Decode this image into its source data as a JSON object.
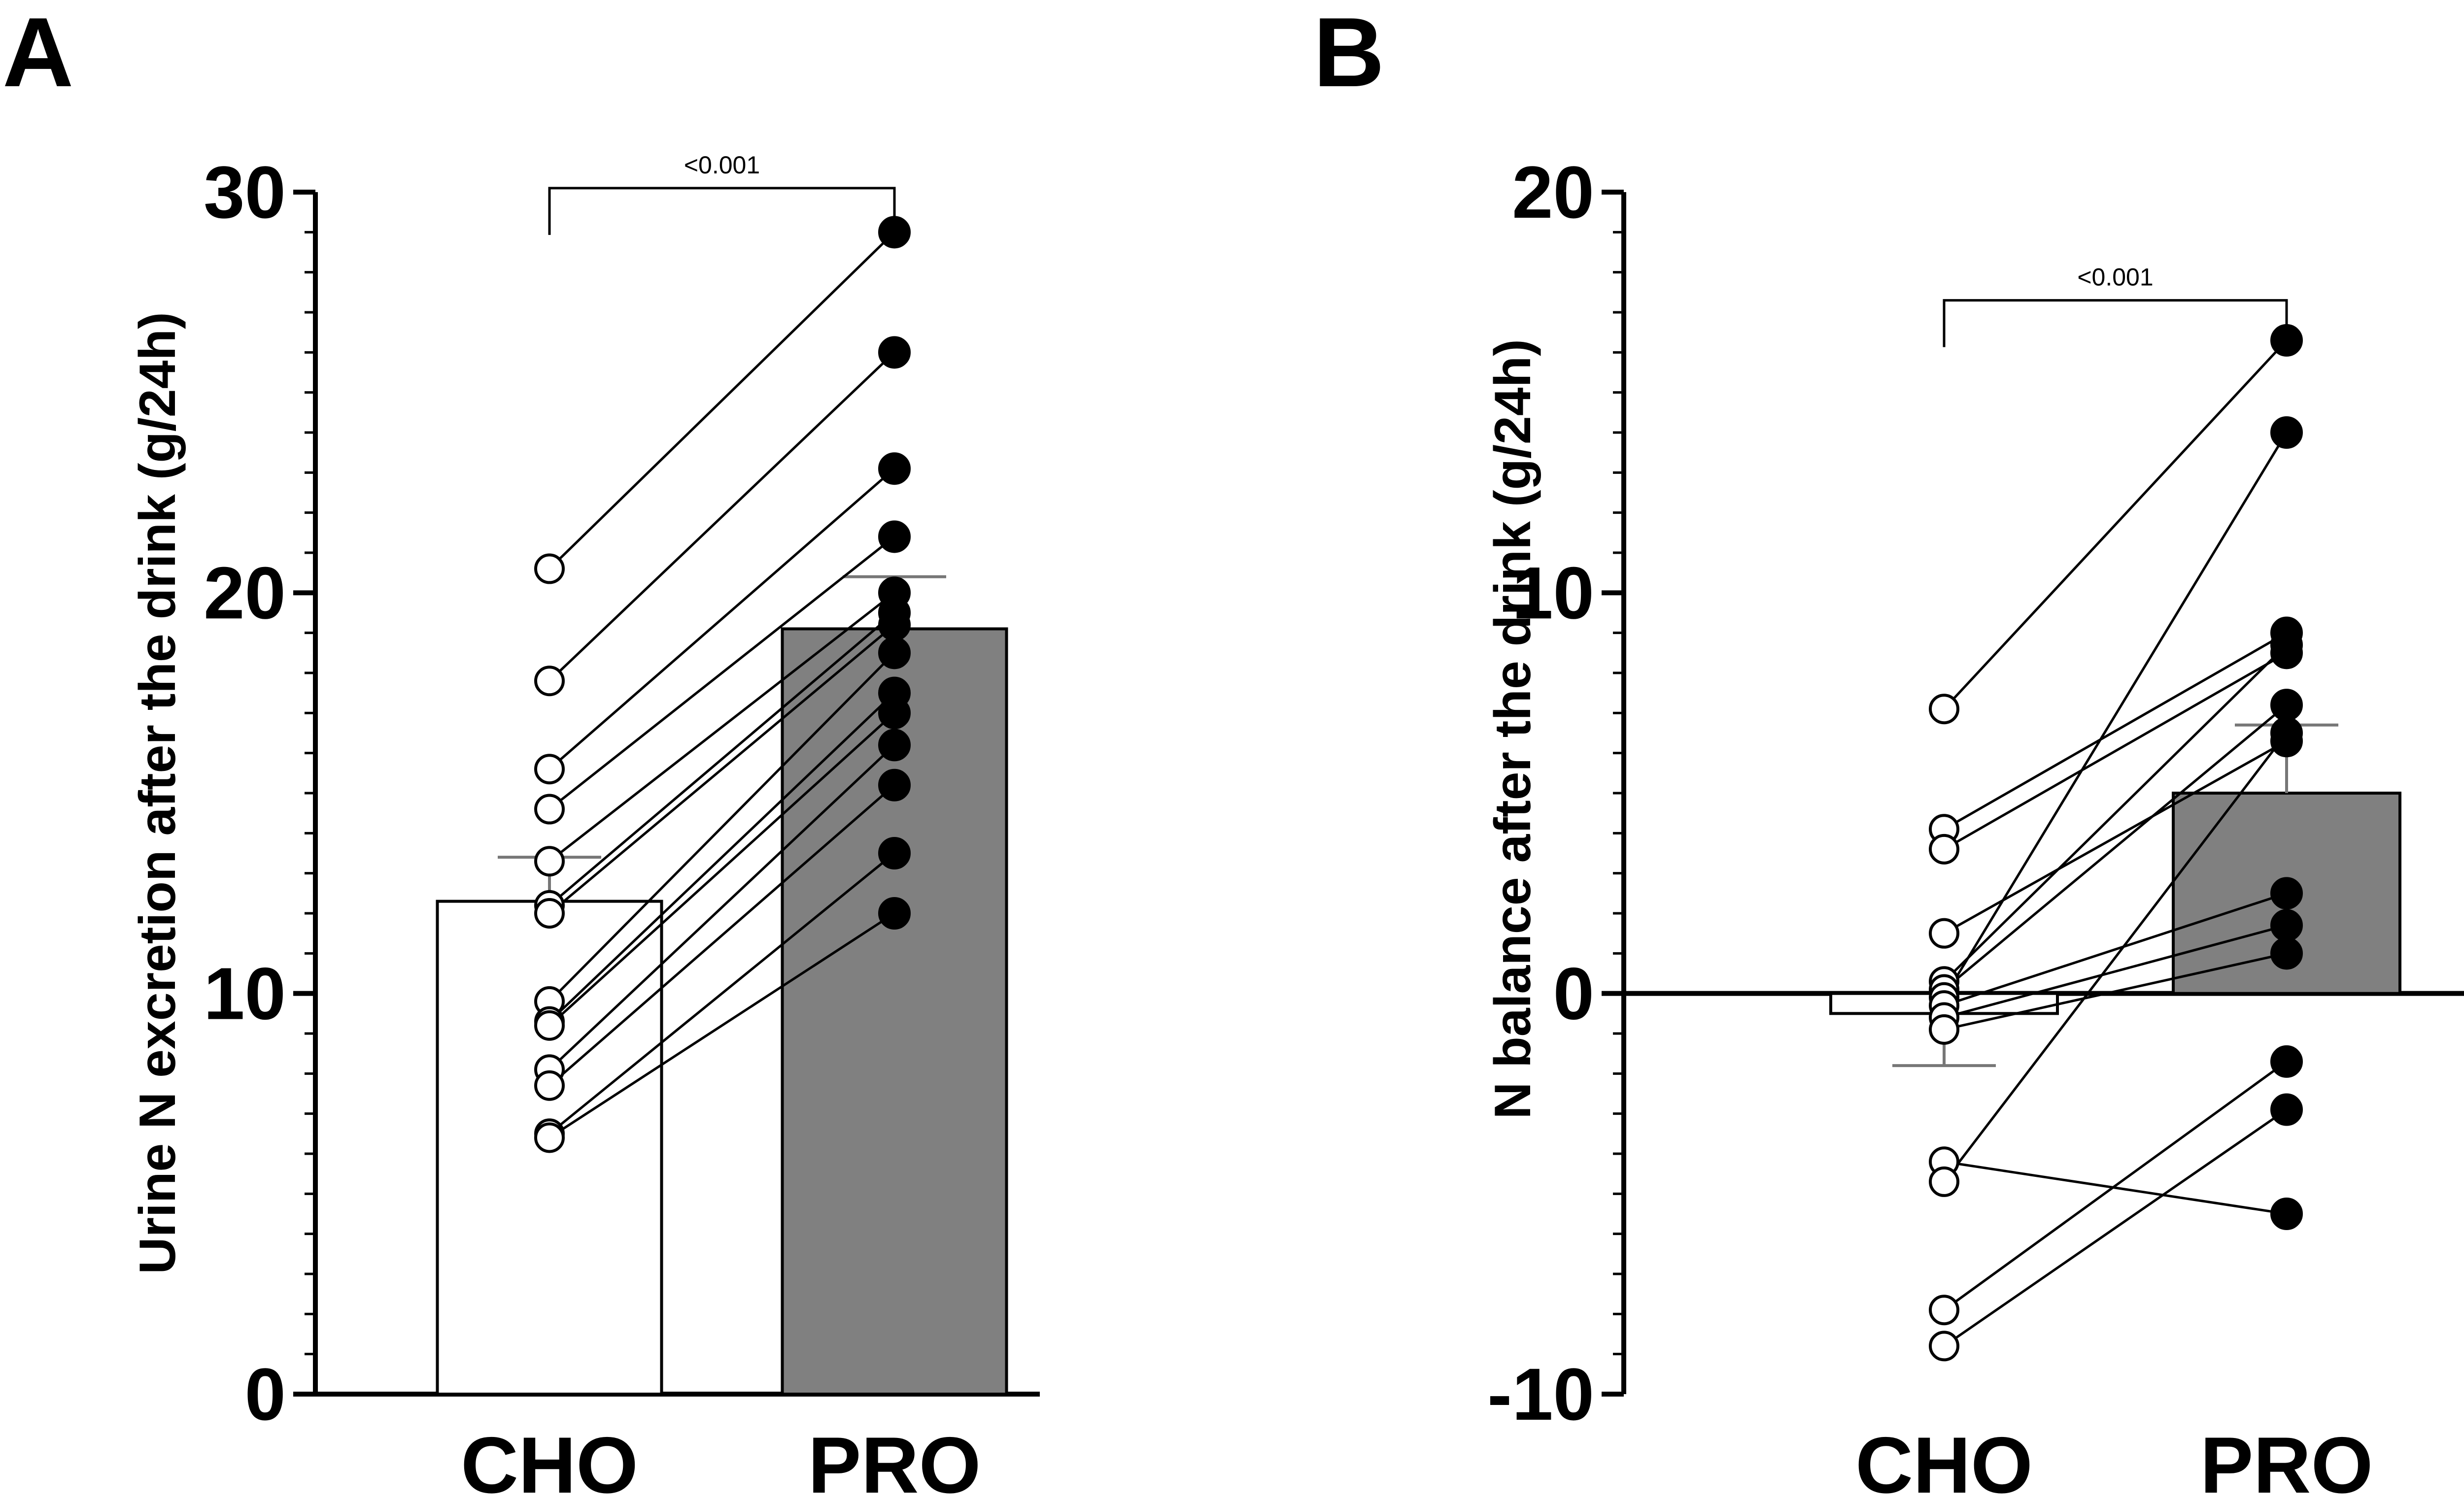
{
  "chart_data": [
    {
      "panel": "A",
      "type": "bar",
      "categories": [
        "CHO",
        "PRO"
      ],
      "ylabel": "Urine N excretion after the drink (g/24h)",
      "ylim": [
        0,
        30
      ],
      "yticks": [
        0,
        10,
        20,
        30
      ],
      "minor_tick_step": 1,
      "bars": [
        {
          "category": "CHO",
          "mean": 12.3,
          "sem": 1.1,
          "color": "#ffffff"
        },
        {
          "category": "PRO",
          "mean": 19.1,
          "sem": 1.3,
          "color": "#808080"
        }
      ],
      "paired": [
        [
          20.6,
          29.0
        ],
        [
          17.8,
          26.0
        ],
        [
          15.6,
          23.1
        ],
        [
          14.6,
          21.4
        ],
        [
          13.3,
          20.0
        ],
        [
          12.2,
          19.5
        ],
        [
          12.0,
          19.2
        ],
        [
          9.8,
          18.5
        ],
        [
          9.3,
          17.5
        ],
        [
          9.2,
          17.0
        ],
        [
          8.1,
          16.2
        ],
        [
          7.7,
          15.2
        ],
        [
          6.5,
          13.5
        ],
        [
          6.4,
          12.0
        ]
      ],
      "pairs_note": "each subject connected CHO→PRO",
      "significance": {
        "text": "<0.001",
        "from": "CHO",
        "to": "PRO",
        "y": 30.1
      }
    },
    {
      "panel": "B",
      "type": "bar",
      "categories": [
        "CHO",
        "PRO"
      ],
      "ylabel": "N balance after the drink (g/24h)",
      "ylim": [
        -10,
        20
      ],
      "yticks": [
        -10,
        0,
        10,
        20
      ],
      "minor_tick_step": 1,
      "bars": [
        {
          "category": "CHO",
          "mean": -0.5,
          "sem": 1.3,
          "color": "#ffffff"
        },
        {
          "category": "PRO",
          "mean": 5.0,
          "sem": 1.7,
          "color": "#808080"
        }
      ],
      "paired": [
        [
          7.1,
          16.3
        ],
        [
          4.1,
          9.0
        ],
        [
          3.6,
          8.5
        ],
        [
          1.5,
          6.3
        ],
        [
          0.3,
          8.7
        ],
        [
          0.1,
          7.2
        ],
        [
          -0.1,
          14.0
        ],
        [
          -0.3,
          2.5
        ],
        [
          -0.6,
          1.7
        ],
        [
          -0.9,
          1.0
        ],
        [
          -4.2,
          -5.5
        ],
        [
          -4.7,
          6.5
        ],
        [
          -7.9,
          -1.7
        ],
        [
          -8.8,
          -2.9
        ]
      ],
      "significance": {
        "text": "<0.001",
        "from": "CHO",
        "to": "PRO",
        "y": 17.3
      }
    }
  ],
  "panels": {
    "a": "A",
    "b": "B"
  }
}
